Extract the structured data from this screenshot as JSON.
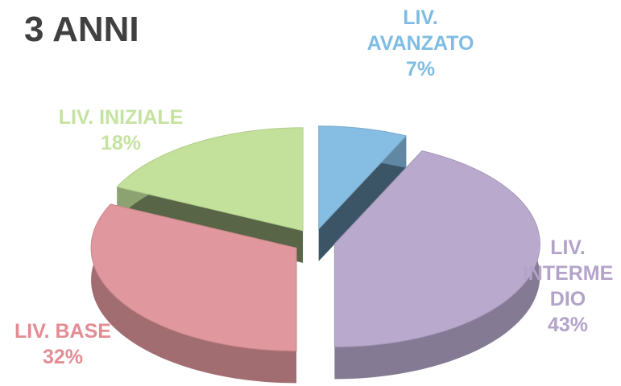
{
  "chart_data": {
    "type": "pie",
    "title": "3 ANNI",
    "categories": [
      "LIV. AVANZATO",
      "LIV. INTERMEDIO",
      "LIV. BASE",
      "LIV. INIZIALE"
    ],
    "values": [
      7,
      43,
      32,
      18
    ],
    "value_labels": [
      "7%",
      "43%",
      "32%",
      "18%"
    ],
    "colors": [
      "#86bde2",
      "#b8a9cd",
      "#e0979d",
      "#c3e19b"
    ],
    "label_colors": [
      "#7fbce3",
      "#b3a3c9",
      "#e38c93",
      "#c5e3a0"
    ]
  }
}
